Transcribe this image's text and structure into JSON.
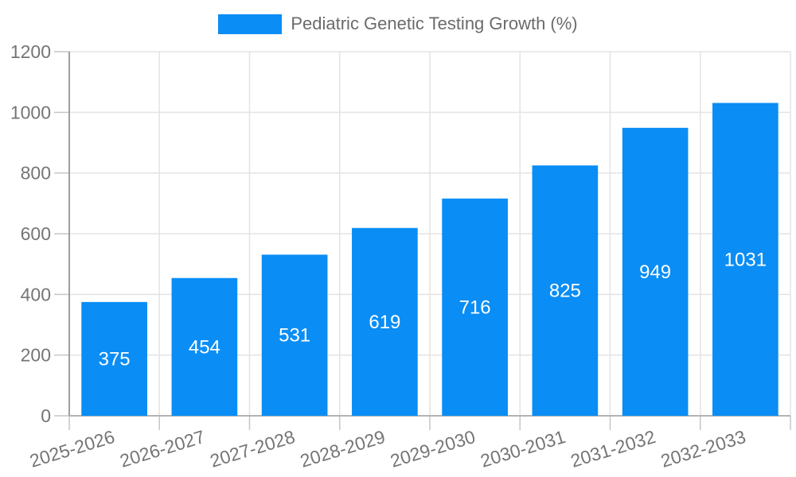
{
  "chart_data": {
    "type": "bar",
    "title": "Pediatric Genetic Testing Growth (%)",
    "categories": [
      "2025-2026",
      "2026-2027",
      "2027-2028",
      "2028-2029",
      "2029-2030",
      "2030-2031",
      "2031-2032",
      "2032-2033"
    ],
    "values": [
      375,
      454,
      531,
      619,
      716,
      825,
      949,
      1031
    ],
    "yticks": [
      0,
      200,
      400,
      600,
      800,
      1000,
      1200
    ],
    "ylim": [
      0,
      1200
    ],
    "xlabel": "",
    "ylabel": "",
    "grid": true,
    "legend_position": "top-center",
    "bar_color": "#0a8df5",
    "value_label_color": "#ffffff",
    "axis_label_color": "#757575",
    "grid_color": "#e3e3e3",
    "y_axis_line_color": "#9e9e9e",
    "x_axis_line_color": "#b3b3b3",
    "tick_color": "#c6c6c6"
  }
}
